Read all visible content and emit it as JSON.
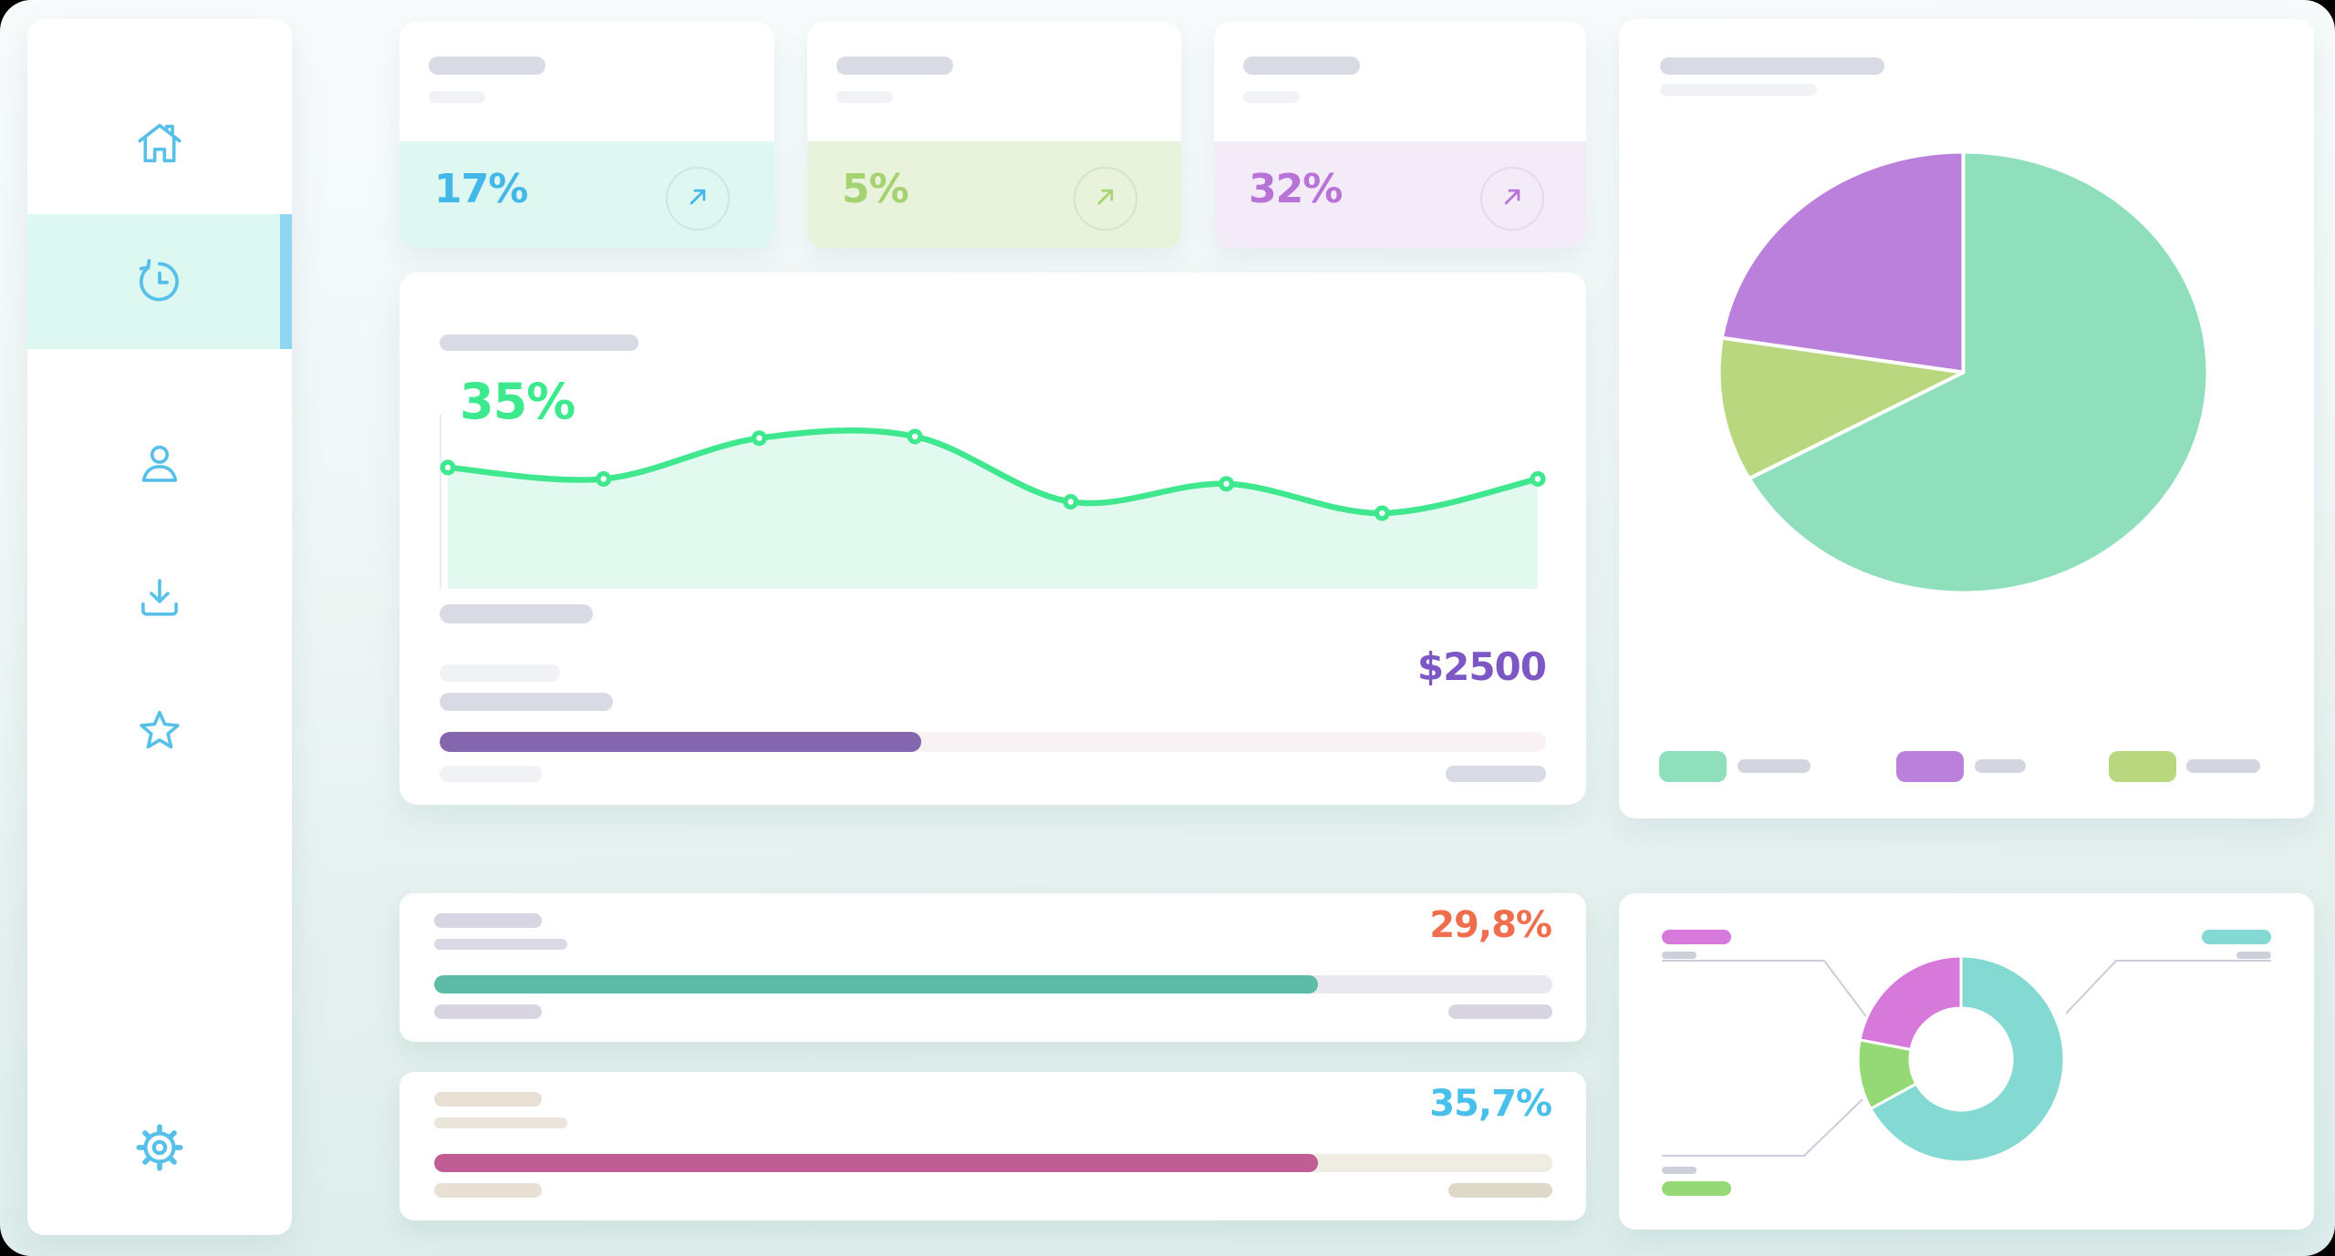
{
  "page": {
    "bg_top": "#f8fbfc",
    "bg_bottom": "#ddedeb",
    "card_bg": "#ffffff"
  },
  "sidebar": {
    "icon_color": "#57c0e9",
    "active_bg": "#dcf8f0",
    "indicator_color": "#8fd6f0",
    "items": [
      {
        "icon": "home-icon",
        "active": false
      },
      {
        "icon": "history-icon",
        "active": true
      },
      {
        "icon": "user-icon",
        "active": false
      },
      {
        "icon": "download-icon",
        "active": false
      },
      {
        "icon": "star-icon",
        "active": false
      },
      {
        "icon": "gear-icon",
        "active": false
      }
    ]
  },
  "stat_cards": [
    {
      "value": "17%",
      "value_color": "#43b7e8",
      "tint_color": "#def7f1",
      "icon": "trend-up-arrow-icon"
    },
    {
      "value": "5%",
      "value_color": "#a6d371",
      "tint_color": "#e9f2da",
      "icon": "trend-up-arrow-icon"
    },
    {
      "value": "32%",
      "value_color": "#b873d6",
      "tint_color": "#f4ebf9",
      "icon": "trend-up-arrow-icon"
    }
  ],
  "chart_data": [
    {
      "type": "area",
      "title": "",
      "label": "35%",
      "label_color": "#3ce98c",
      "x": [
        1,
        2,
        3,
        4,
        5,
        6,
        7,
        8
      ],
      "series_percent": [
        71,
        64,
        89,
        90,
        50,
        61,
        43,
        64
      ],
      "ylim": [
        0,
        100
      ],
      "grid": false,
      "legend": "none",
      "line_color": "#3fe78f",
      "fill_color": "#e1f9ef",
      "axis_color": "#e8edf2"
    },
    {
      "type": "pie",
      "title": "",
      "slices": [
        {
          "name": "segment-green",
          "percent": 67,
          "color": "#8fdfbc"
        },
        {
          "name": "segment-olive",
          "percent": 10.5,
          "color": "#b9d77e"
        },
        {
          "name": "segment-purple",
          "percent": 22.5,
          "color": "#ba80db"
        }
      ],
      "legend_position": "bottom",
      "legend_order": [
        0,
        2,
        1
      ]
    },
    {
      "type": "donut",
      "title": "",
      "slices": [
        {
          "name": "segment-teal",
          "percent": 67,
          "color": "#84d9d3"
        },
        {
          "name": "segment-green",
          "percent": 11,
          "color": "#95d976"
        },
        {
          "name": "segment-pink",
          "percent": 22,
          "color": "#d779da"
        }
      ],
      "legend_position": "corners",
      "callout_color": "#c9cedb"
    },
    {
      "type": "progress",
      "label": "29,8%",
      "label_color": "#ef6e4e",
      "percent": 79,
      "fill_color": "#5cbca7",
      "track_color": "#e9e7ef"
    },
    {
      "type": "progress",
      "label": "35,7%",
      "label_color": "#49c0ec",
      "percent": 79,
      "fill_color": "#c05d95",
      "track_color": "#eeece3"
    },
    {
      "type": "progress",
      "label": "$2500",
      "label_color": "#7d57c4",
      "percent": 43.5,
      "fill_color": "#8366ae",
      "track_color": "#f8f2f4"
    }
  ]
}
